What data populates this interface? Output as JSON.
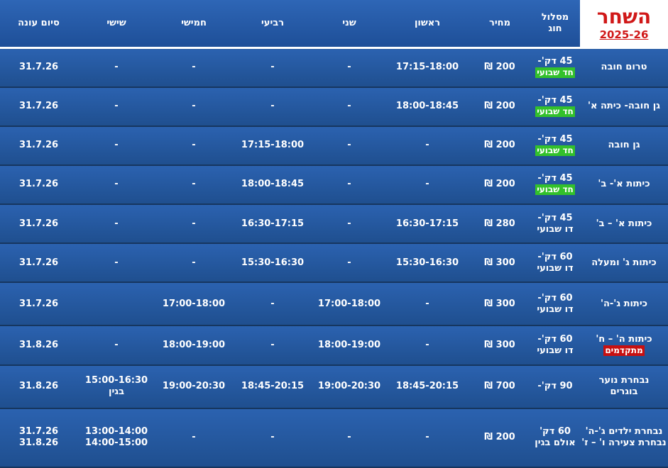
{
  "brand": {
    "title": "השחר",
    "season": "2025-26"
  },
  "headers": {
    "track": [
      "מסלול",
      "חוג"
    ],
    "price": "מחיר",
    "sun": "ראשון",
    "mon": "שני",
    "wed": "רביעי",
    "thu": "חמישי",
    "fri": "שישי",
    "end": "סיום עונה"
  },
  "rows": [
    {
      "class": [
        "טרום חובה"
      ],
      "duration": "45 דק'-",
      "tag": "חד שבועי",
      "tag_color": "green",
      "price": "200 ₪",
      "sun": [
        "17:15-18:00"
      ],
      "mon": [
        "-"
      ],
      "wed": [
        "-"
      ],
      "thu": [
        "-"
      ],
      "fri": [
        "-"
      ],
      "end": [
        "31.7.26"
      ]
    },
    {
      "class": [
        "גן חובה- כיתה א'"
      ],
      "duration": "45 דק'-",
      "tag": "חד שבועי",
      "tag_color": "green",
      "price": "200 ₪",
      "sun": [
        "18:00-18:45"
      ],
      "mon": [
        "-"
      ],
      "wed": [
        "-"
      ],
      "thu": [
        "-"
      ],
      "fri": [
        "-"
      ],
      "end": [
        "31.7.26"
      ]
    },
    {
      "class": [
        "גן חובה"
      ],
      "duration": "45 דק'-",
      "tag": "חד שבועי",
      "tag_color": "green",
      "price": "200 ₪",
      "sun": [
        "-"
      ],
      "mon": [
        "-"
      ],
      "wed": [
        "17:15-18:00"
      ],
      "thu": [
        "-"
      ],
      "fri": [
        "-"
      ],
      "end": [
        "31.7.26"
      ]
    },
    {
      "class": [
        "כיתות א'- ב'"
      ],
      "duration": "45 דק'-",
      "tag": "חד שבועי",
      "tag_color": "green",
      "price": "200 ₪",
      "sun": [
        "-"
      ],
      "mon": [
        "-"
      ],
      "wed": [
        "18:00-18:45"
      ],
      "thu": [
        "-"
      ],
      "fri": [
        "-"
      ],
      "end": [
        "31.7.26"
      ]
    },
    {
      "class": [
        "כיתות א' – ב'"
      ],
      "duration": "45 דק'-",
      "duration2": "דו שבועי",
      "price": "280 ₪",
      "sun": [
        "16:30-17:15"
      ],
      "mon": [
        "-"
      ],
      "wed": [
        "16:30-17:15"
      ],
      "thu": [
        "-"
      ],
      "fri": [
        "-"
      ],
      "end": [
        "31.7.26"
      ]
    },
    {
      "class": [
        "כיתות ג' ומעלה"
      ],
      "duration": "60 דק'-",
      "duration2": "דו שבועי",
      "price": "300 ₪",
      "sun": [
        "15:30-16:30"
      ],
      "mon": [
        "-"
      ],
      "wed": [
        "15:30-16:30"
      ],
      "thu": [
        "-"
      ],
      "fri": [
        "-"
      ],
      "end": [
        "31.7.26"
      ]
    },
    {
      "class": [
        "כיתות ג'-ה'"
      ],
      "duration": "60 דק'-",
      "duration2": "דו שבועי",
      "price": "300 ₪",
      "sun": [
        "-"
      ],
      "mon": [
        "17:00-18:00"
      ],
      "wed": [
        "-"
      ],
      "thu": [
        "17:00-18:00"
      ],
      "fri": [
        ""
      ],
      "end": [
        "31.7.26"
      ]
    },
    {
      "class": [
        "כיתות ה' – ח'"
      ],
      "class_tag": "מתקדמים",
      "duration": "60 דק'-",
      "duration2": "דו שבועי",
      "price": "300 ₪",
      "sun": [
        "-"
      ],
      "mon": [
        "18:00-19:00"
      ],
      "wed": [
        "-"
      ],
      "thu": [
        "18:00-19:00"
      ],
      "fri": [
        "-"
      ],
      "end": [
        "31.8.26"
      ]
    },
    {
      "class": [
        "נבחרת נוער",
        "בוגרים"
      ],
      "duration": "90 דק'-",
      "price": "700 ₪",
      "sun": [
        "18:45-20:15"
      ],
      "mon": [
        "19:00-20:30"
      ],
      "wed": [
        "18:45-20:15"
      ],
      "thu": [
        "19:00-20:30"
      ],
      "fri": [
        "15:00-16:30",
        "בגין"
      ],
      "end": [
        "31.8.26"
      ]
    },
    {
      "class": [
        "נבחרת ילדים ג'-ה'",
        "נבחרת צעירה ו' – ז'"
      ],
      "duration": "60 דק'",
      "duration2": "אולם בגין",
      "price": "200 ₪",
      "sun": [
        "-"
      ],
      "mon": [
        "-"
      ],
      "wed": [
        "-"
      ],
      "thu": [
        "-"
      ],
      "fri": [
        "13:00-14:00",
        "14:00-15:00"
      ],
      "end": [
        "31.7.26",
        "31.8.26"
      ]
    }
  ]
}
